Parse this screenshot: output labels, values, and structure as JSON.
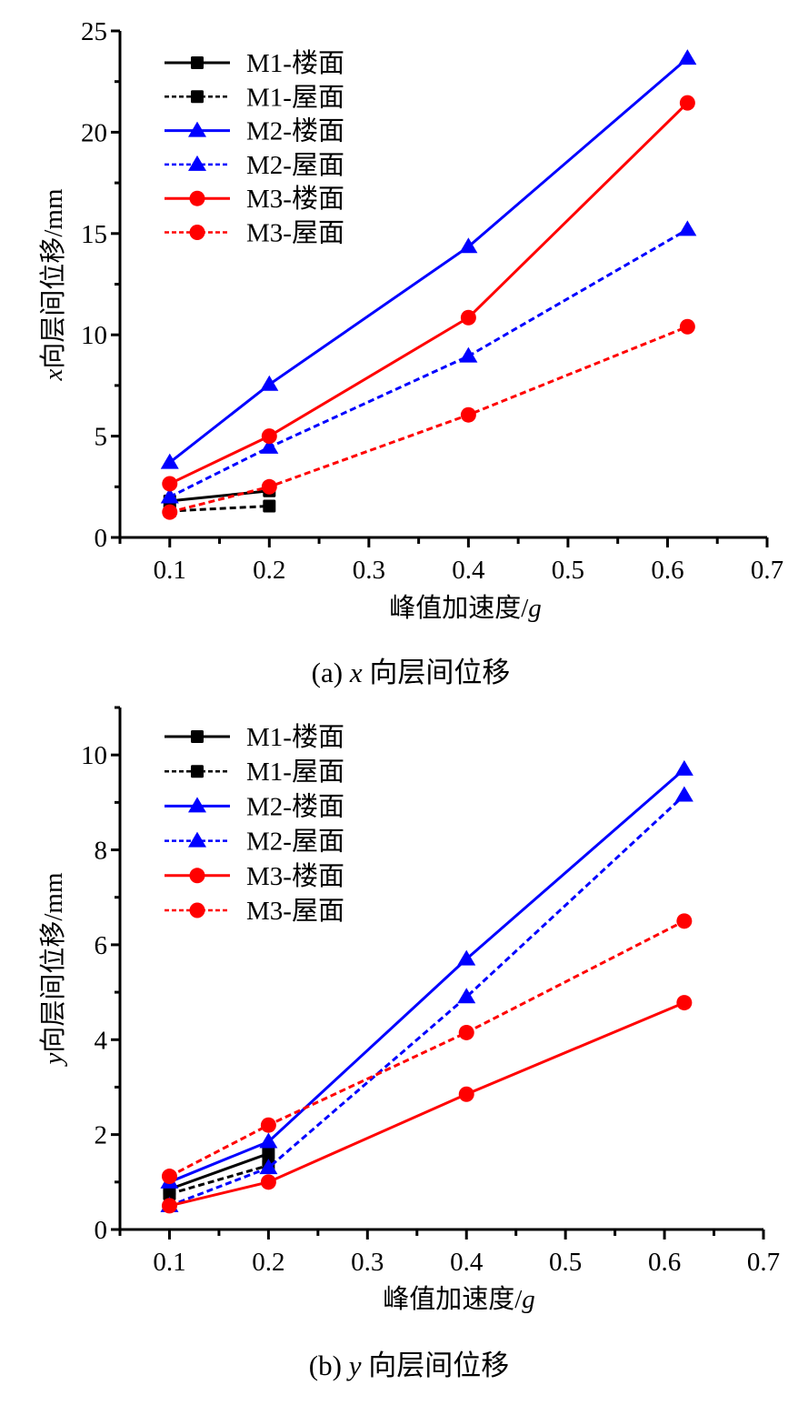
{
  "chart_data": [
    {
      "type": "line",
      "id": "chart-a",
      "caption": "(a) x 向层间位移",
      "caption_prefix": "(a) ",
      "caption_var": "x",
      "caption_rest": " 向层间位移",
      "xlabel": "峰值加速度/g",
      "xlabel_text": "峰值加速度/",
      "xlabel_var": "g",
      "ylabel": "x向层间位移/mm",
      "ylabel_var": "x",
      "ylabel_text": "向层间位移/mm",
      "xlim": [
        0.05,
        0.7
      ],
      "ylim": [
        0,
        25
      ],
      "xticks": [
        0.1,
        0.2,
        0.3,
        0.4,
        0.5,
        0.6,
        0.7
      ],
      "xtick_labels": [
        "0.1",
        "0.2",
        "0.3",
        "0.4",
        "0.5",
        "0.6",
        "0.7"
      ],
      "x_minor_step": 0.05,
      "yticks": [
        0,
        5,
        10,
        15,
        20,
        25
      ],
      "ytick_labels": [
        "0",
        "5",
        "10",
        "15",
        "20",
        "25"
      ],
      "y_minor_step": 2.5,
      "grid": false,
      "legend_position": "top-left",
      "series": [
        {
          "name": "M1-楼面",
          "color": "#000000",
          "dash": "solid",
          "marker": "square",
          "x": [
            0.1,
            0.2
          ],
          "values": [
            1.8,
            2.3
          ]
        },
        {
          "name": "M1-屋面",
          "color": "#000000",
          "dash": "dashed",
          "marker": "square",
          "x": [
            0.1,
            0.2
          ],
          "values": [
            1.3,
            1.55
          ]
        },
        {
          "name": "M2-楼面",
          "color": "#0000ff",
          "dash": "solid",
          "marker": "triangle",
          "x": [
            0.1,
            0.2,
            0.4,
            0.62
          ],
          "values": [
            3.7,
            7.55,
            14.35,
            23.65
          ]
        },
        {
          "name": "M2-屋面",
          "color": "#0000ff",
          "dash": "dashed",
          "marker": "triangle",
          "x": [
            0.1,
            0.2,
            0.4,
            0.62
          ],
          "values": [
            2.0,
            4.45,
            8.95,
            15.2
          ]
        },
        {
          "name": "M3-楼面",
          "color": "#ff0000",
          "dash": "solid",
          "marker": "circle",
          "x": [
            0.1,
            0.2,
            0.4,
            0.62
          ],
          "values": [
            2.65,
            5.0,
            10.85,
            21.45
          ]
        },
        {
          "name": "M3-屋面",
          "color": "#ff0000",
          "dash": "dashed",
          "marker": "circle",
          "x": [
            0.1,
            0.2,
            0.4,
            0.62
          ],
          "values": [
            1.25,
            2.5,
            6.05,
            10.4
          ]
        }
      ]
    },
    {
      "type": "line",
      "id": "chart-b",
      "caption": "(b) y 向层间位移",
      "caption_prefix": "(b) ",
      "caption_var": "y",
      "caption_rest": " 向层间位移",
      "xlabel": "峰值加速度/g",
      "xlabel_text": "峰值加速度/",
      "xlabel_var": "g",
      "ylabel": "y向层间位移/mm",
      "ylabel_var": "y",
      "ylabel_text": "向层间位移/mm",
      "xlim": [
        0.05,
        0.7
      ],
      "ylim": [
        0,
        11
      ],
      "xticks": [
        0.1,
        0.2,
        0.3,
        0.4,
        0.5,
        0.6,
        0.7
      ],
      "xtick_labels": [
        "0.1",
        "0.2",
        "0.3",
        "0.4",
        "0.5",
        "0.6",
        "0.7"
      ],
      "x_minor_step": 0.05,
      "yticks": [
        0,
        2,
        4,
        6,
        8,
        10
      ],
      "ytick_labels": [
        "0",
        "2",
        "4",
        "6",
        "8",
        "10"
      ],
      "y_minor_step": 1,
      "grid": false,
      "legend_position": "top-left",
      "series": [
        {
          "name": "M1-楼面",
          "color": "#000000",
          "dash": "solid",
          "marker": "square",
          "x": [
            0.1,
            0.2
          ],
          "values": [
            0.85,
            1.6
          ]
        },
        {
          "name": "M1-屋面",
          "color": "#000000",
          "dash": "dashed",
          "marker": "square",
          "x": [
            0.1,
            0.2
          ],
          "values": [
            0.75,
            1.35
          ]
        },
        {
          "name": "M2-楼面",
          "color": "#0000ff",
          "dash": "solid",
          "marker": "triangle",
          "x": [
            0.1,
            0.2,
            0.4,
            0.62
          ],
          "values": [
            1.0,
            1.85,
            5.7,
            9.7
          ]
        },
        {
          "name": "M2-屋面",
          "color": "#0000ff",
          "dash": "dashed",
          "marker": "triangle",
          "x": [
            0.1,
            0.2,
            0.4,
            0.62
          ],
          "values": [
            0.5,
            1.3,
            4.9,
            9.15
          ]
        },
        {
          "name": "M3-楼面",
          "color": "#ff0000",
          "dash": "solid",
          "marker": "circle",
          "x": [
            0.1,
            0.2,
            0.4,
            0.62
          ],
          "values": [
            0.5,
            1.0,
            2.85,
            4.78
          ]
        },
        {
          "name": "M3-屋面",
          "color": "#ff0000",
          "dash": "dashed",
          "marker": "circle",
          "x": [
            0.1,
            0.2,
            0.4,
            0.62
          ],
          "values": [
            1.12,
            2.2,
            4.15,
            6.5
          ]
        }
      ]
    }
  ]
}
